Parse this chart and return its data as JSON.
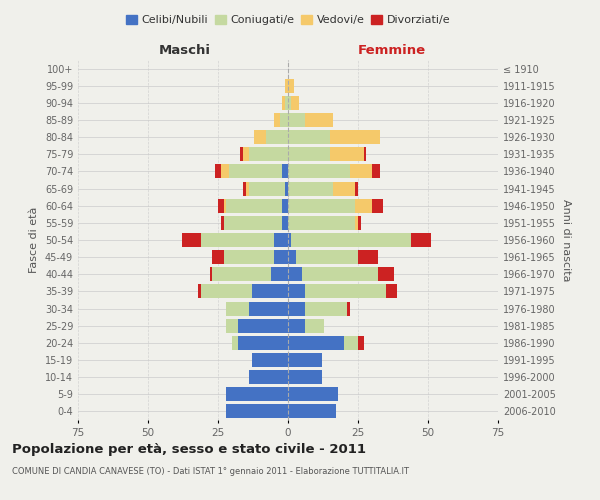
{
  "age_groups": [
    "0-4",
    "5-9",
    "10-14",
    "15-19",
    "20-24",
    "25-29",
    "30-34",
    "35-39",
    "40-44",
    "45-49",
    "50-54",
    "55-59",
    "60-64",
    "65-69",
    "70-74",
    "75-79",
    "80-84",
    "85-89",
    "90-94",
    "95-99",
    "100+"
  ],
  "birth_years": [
    "2006-2010",
    "2001-2005",
    "1996-2000",
    "1991-1995",
    "1986-1990",
    "1981-1985",
    "1976-1980",
    "1971-1975",
    "1966-1970",
    "1961-1965",
    "1956-1960",
    "1951-1955",
    "1946-1950",
    "1941-1945",
    "1936-1940",
    "1931-1935",
    "1926-1930",
    "1921-1925",
    "1916-1920",
    "1911-1915",
    "≤ 1910"
  ],
  "male": {
    "celibi": [
      22,
      22,
      14,
      13,
      18,
      18,
      14,
      13,
      6,
      5,
      5,
      2,
      2,
      1,
      2,
      0,
      0,
      0,
      0,
      0,
      0
    ],
    "coniugati": [
      0,
      0,
      0,
      0,
      2,
      4,
      8,
      18,
      21,
      18,
      26,
      21,
      20,
      13,
      19,
      14,
      8,
      3,
      1,
      0,
      0
    ],
    "vedovi": [
      0,
      0,
      0,
      0,
      0,
      0,
      0,
      0,
      0,
      0,
      0,
      0,
      1,
      1,
      3,
      2,
      4,
      2,
      1,
      1,
      0
    ],
    "divorziati": [
      0,
      0,
      0,
      0,
      0,
      0,
      0,
      1,
      1,
      4,
      7,
      1,
      2,
      1,
      2,
      1,
      0,
      0,
      0,
      0,
      0
    ]
  },
  "female": {
    "nubili": [
      17,
      18,
      12,
      12,
      20,
      6,
      6,
      6,
      5,
      3,
      1,
      0,
      0,
      0,
      0,
      0,
      0,
      0,
      0,
      0,
      0
    ],
    "coniugate": [
      0,
      0,
      0,
      0,
      5,
      7,
      15,
      29,
      27,
      22,
      43,
      24,
      24,
      16,
      22,
      15,
      15,
      6,
      1,
      0,
      0
    ],
    "vedove": [
      0,
      0,
      0,
      0,
      0,
      0,
      0,
      0,
      0,
      0,
      0,
      1,
      6,
      8,
      8,
      12,
      18,
      10,
      3,
      2,
      0
    ],
    "divorziate": [
      0,
      0,
      0,
      0,
      2,
      0,
      1,
      4,
      6,
      7,
      7,
      1,
      4,
      1,
      3,
      1,
      0,
      0,
      0,
      0,
      0
    ]
  },
  "colors": {
    "celibi": "#4472c4",
    "coniugati": "#c5d9a0",
    "vedovi": "#f5c96a",
    "divorziati": "#cc2222"
  },
  "title": "Popolazione per età, sesso e stato civile - 2011",
  "subtitle": "COMUNE DI CANDIA CANAVESE (TO) - Dati ISTAT 1° gennaio 2011 - Elaborazione TUTTITALIA.IT",
  "xlabel_left": "Maschi",
  "xlabel_right": "Femmine",
  "ylabel_left": "Fasce di età",
  "ylabel_right": "Anni di nascita",
  "xlim": 75,
  "background_color": "#f0f0eb",
  "legend_labels": [
    "Celibi/Nubili",
    "Coniugati/e",
    "Vedovi/e",
    "Divorziati/e"
  ]
}
